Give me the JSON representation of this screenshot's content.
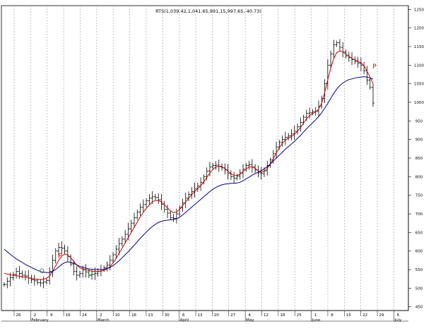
{
  "chart_data": {
    "type": "bar",
    "title": "RTS(1,039.42,1,041.65,991.15,997.65,-40.73)",
    "ylim": [
      440,
      1260
    ],
    "yticks": [
      450,
      500,
      550,
      600,
      650,
      700,
      750,
      800,
      850,
      900,
      950,
      1000,
      1050,
      1100,
      1150,
      1200,
      1250
    ],
    "x_day_ticks": [
      "26",
      "2",
      "9",
      "16",
      "24",
      "2",
      "10",
      "16",
      "23",
      "30",
      "6",
      "13",
      "20",
      "27",
      "4",
      "12",
      "18",
      "25",
      "1",
      "8",
      "15",
      "22",
      "29",
      "6"
    ],
    "x_month_labels": [
      "February",
      "March",
      "April",
      "May",
      "June",
      "July"
    ],
    "series": [
      {
        "kind": "ohlc",
        "values": [
          510,
          519,
          528,
          537,
          545,
          540,
          535,
          533,
          527,
          523,
          520,
          515,
          514,
          517,
          521,
          545,
          575,
          600,
          610,
          608,
          600,
          585,
          565,
          545,
          535,
          540,
          550,
          544,
          535,
          538,
          540,
          545,
          550,
          555,
          562,
          575,
          590,
          605,
          620,
          632,
          645,
          660,
          675,
          690,
          705,
          718,
          725,
          735,
          742,
          746,
          744,
          738,
          726,
          712,
          702,
          690,
          688,
          700,
          716,
          730,
          742,
          752,
          760,
          768,
          775,
          785,
          800,
          815,
          826,
          830,
          831,
          828,
          824,
          818,
          808,
          800,
          796,
          802,
          810,
          820,
          830,
          832,
          826,
          818,
          810,
          808,
          816,
          830,
          845,
          862,
          880,
          892,
          900,
          906,
          910,
          915,
          922,
          934,
          946,
          960,
          970,
          972,
          975,
          976,
          990,
          1010,
          1050,
          1100,
          1130,
          1155,
          1160,
          1148,
          1135,
          1125,
          1120,
          1115,
          1110,
          1105,
          1100,
          1085,
          1060,
          1040,
          998
        ]
      },
      {
        "kind": "short-ma",
        "color": "#cc0000",
        "values": [
          540,
          538,
          536,
          535,
          534,
          532,
          531,
          530,
          528,
          526,
          525,
          524,
          523,
          524,
          527,
          533,
          545,
          560,
          575,
          586,
          592,
          590,
          582,
          572,
          562,
          555,
          552,
          550,
          548,
          546,
          545,
          545,
          546,
          548,
          552,
          558,
          568,
          580,
          594,
          608,
          622,
          636,
          650,
          664,
          678,
          692,
          704,
          715,
          724,
          732,
          736,
          736,
          732,
          724,
          716,
          708,
          703,
          705,
          712,
          722,
          732,
          742,
          752,
          760,
          768,
          776,
          786,
          798,
          810,
          820,
          826,
          828,
          826,
          822,
          815,
          808,
          803,
          803,
          807,
          814,
          821,
          826,
          826,
          822,
          816,
          812,
          814,
          822,
          834,
          848,
          864,
          878,
          890,
          898,
          904,
          908,
          914,
          922,
          932,
          944,
          956,
          964,
          970,
          974,
          982,
          998,
          1026,
          1060,
          1092,
          1118,
          1134,
          1138,
          1136,
          1130,
          1124,
          1118,
          1114,
          1110,
          1106,
          1098,
          1084,
          1068,
          1050
        ]
      },
      {
        "kind": "long-ma",
        "color": "#000080",
        "values": [
          605,
          598,
          591,
          585,
          579,
          574,
          569,
          564,
          560,
          556,
          552,
          548,
          545,
          543,
          542,
          542,
          545,
          550,
          557,
          564,
          569,
          571,
          570,
          567,
          563,
          559,
          556,
          554,
          552,
          551,
          550,
          550,
          550,
          551,
          553,
          556,
          561,
          567,
          574,
          582,
          590,
          598,
          607,
          616,
          625,
          634,
          643,
          651,
          659,
          666,
          672,
          677,
          680,
          682,
          683,
          684,
          685,
          687,
          691,
          697,
          704,
          711,
          718,
          725,
          732,
          739,
          746,
          753,
          760,
          766,
          771,
          775,
          778,
          780,
          781,
          782,
          782,
          783,
          785,
          789,
          794,
          799,
          804,
          808,
          812,
          816,
          821,
          827,
          834,
          842,
          850,
          858,
          866,
          874,
          881,
          888,
          895,
          903,
          911,
          920,
          929,
          937,
          945,
          953,
          962,
          972,
          984,
          997,
          1011,
          1024,
          1036,
          1045,
          1052,
          1057,
          1061,
          1063,
          1065,
          1067,
          1068,
          1069,
          1068,
          1066,
          1062
        ]
      }
    ],
    "markers": [
      {
        "label": "O",
        "color": "#2e8b2e"
      },
      {
        "label": "P",
        "color": "#cc0000"
      },
      {
        "label": "O",
        "color": "#2e8b2e"
      },
      {
        "label": "P",
        "color": "#cc0000"
      }
    ],
    "gridlines": "vertical-dashed"
  }
}
